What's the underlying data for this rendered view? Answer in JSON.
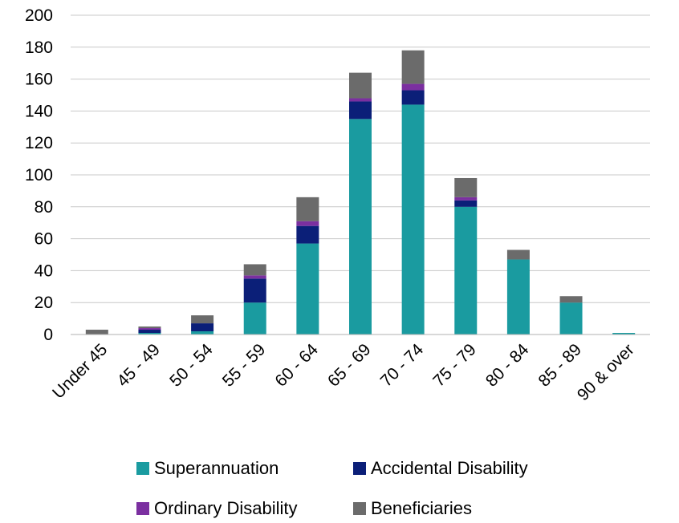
{
  "chart_data": {
    "type": "bar",
    "stacked": true,
    "categories": [
      "Under 45",
      "45 - 49",
      "50 - 54",
      "55 - 59",
      "60 - 64",
      "65 - 69",
      "70 - 74",
      "75 - 79",
      "80 - 84",
      "85 - 89",
      "90 & over"
    ],
    "series": [
      {
        "name": "Superannuation",
        "color": "#1a9ba0",
        "values": [
          0,
          1,
          2,
          20,
          57,
          135,
          144,
          80,
          47,
          20,
          1
        ]
      },
      {
        "name": "Accidental Disability",
        "color": "#0b1f78",
        "values": [
          0,
          2,
          5,
          15,
          11,
          11,
          9,
          4,
          0,
          0,
          0
        ]
      },
      {
        "name": "Ordinary Disability",
        "color": "#7b2fa0",
        "values": [
          0,
          1,
          0,
          2,
          3,
          2,
          4,
          2,
          0,
          0,
          0
        ]
      },
      {
        "name": "Beneficiaries",
        "color": "#6b6b6b",
        "values": [
          3,
          1,
          5,
          7,
          15,
          16,
          21,
          12,
          6,
          4,
          0
        ]
      }
    ],
    "yticks": [
      0,
      20,
      40,
      60,
      80,
      100,
      120,
      140,
      160,
      180,
      200
    ],
    "ylim": [
      0,
      200
    ],
    "grid": true,
    "legend_position": "bottom",
    "title": "",
    "xlabel": "",
    "ylabel": ""
  }
}
